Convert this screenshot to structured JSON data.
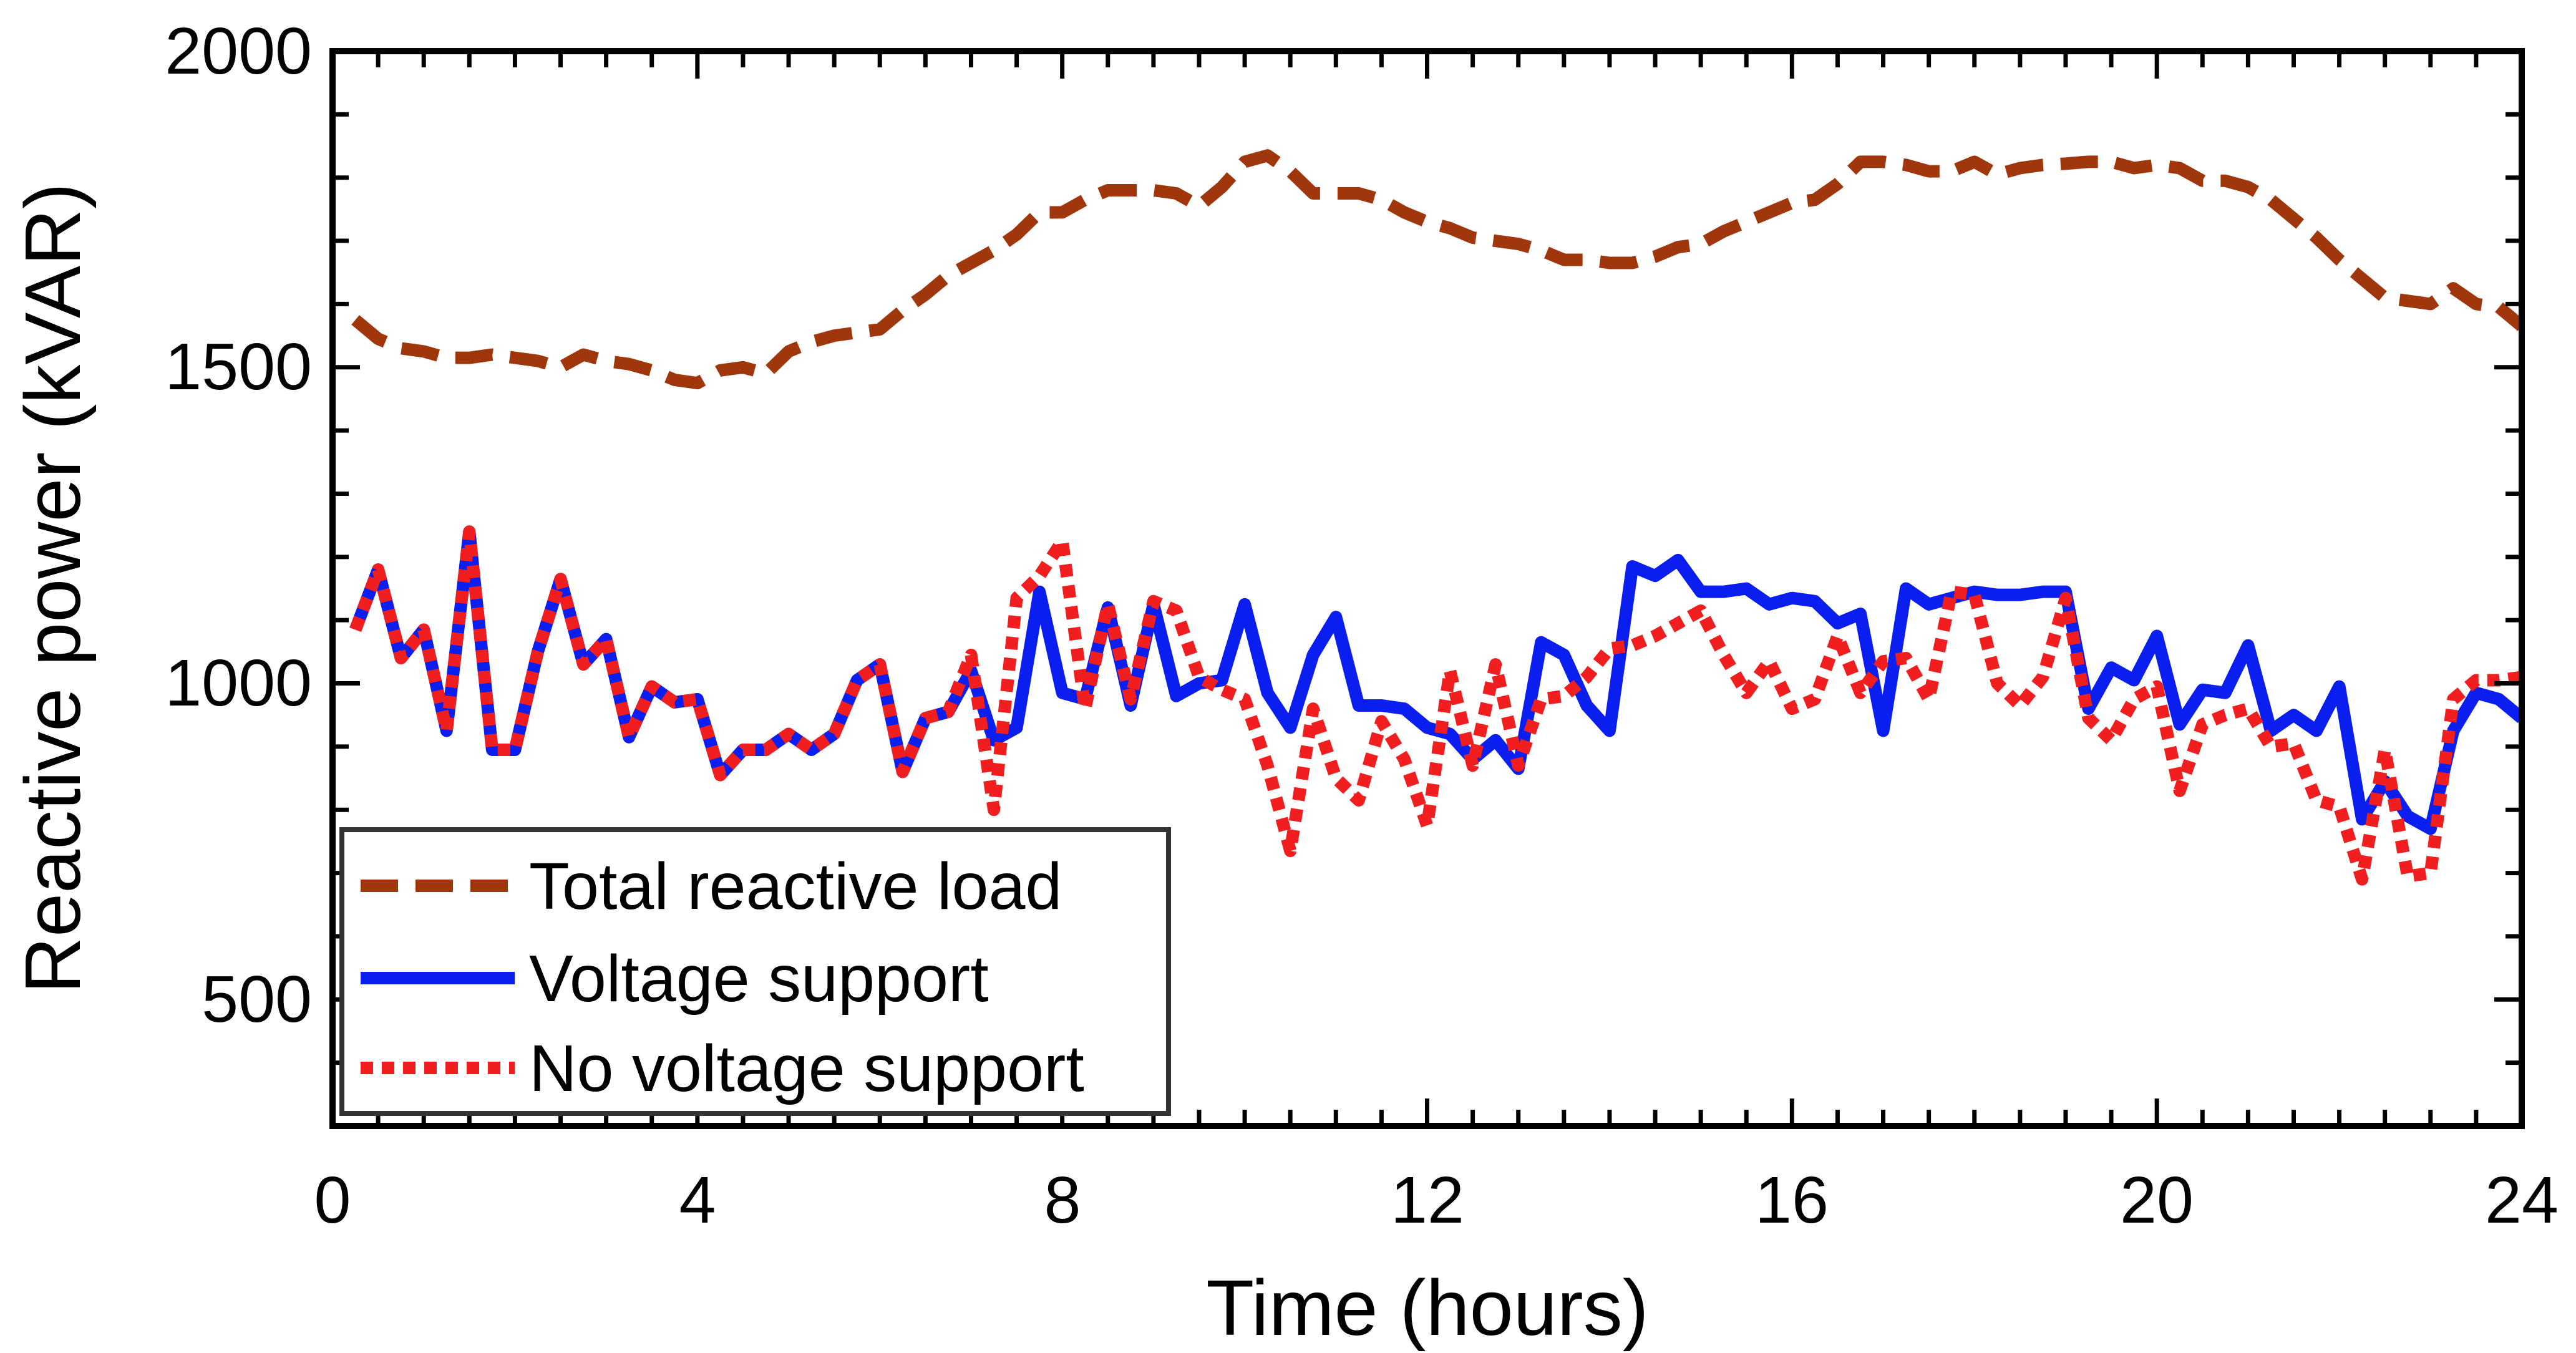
{
  "chart_data": {
    "type": "line",
    "title": "",
    "xlabel": "Time (hours)",
    "ylabel": "Reactive power (kVAR)",
    "xlim": [
      0,
      24
    ],
    "ylim": [
      300,
      2000
    ],
    "xticks": [
      0,
      4,
      8,
      12,
      16,
      20,
      24
    ],
    "xtick_labels": [
      "0",
      "4",
      "8",
      "12",
      "16",
      "20",
      "24"
    ],
    "yticks": [
      500,
      1000,
      1500,
      2000
    ],
    "ytick_labels": [
      "500",
      "1000",
      "1500",
      "2000"
    ],
    "grid": false,
    "legend_position": "bottom-left",
    "x": [
      0.25,
      0.5,
      0.75,
      1.0,
      1.25,
      1.5,
      1.75,
      2.0,
      2.25,
      2.5,
      2.75,
      3.0,
      3.25,
      3.5,
      3.75,
      4.0,
      4.25,
      4.5,
      4.75,
      5.0,
      5.25,
      5.5,
      5.75,
      6.0,
      6.25,
      6.5,
      6.75,
      7.0,
      7.25,
      7.5,
      7.75,
      8.0,
      8.25,
      8.5,
      8.75,
      9.0,
      9.25,
      9.5,
      9.75,
      10.0,
      10.25,
      10.5,
      10.75,
      11.0,
      11.25,
      11.5,
      11.75,
      12.0,
      12.25,
      12.5,
      12.75,
      13.0,
      13.25,
      13.5,
      13.75,
      14.0,
      14.25,
      14.5,
      14.75,
      15.0,
      15.25,
      15.5,
      15.75,
      16.0,
      16.25,
      16.5,
      16.75,
      17.0,
      17.25,
      17.5,
      17.75,
      18.0,
      18.25,
      18.5,
      18.75,
      19.0,
      19.25,
      19.5,
      19.75,
      20.0,
      20.25,
      20.5,
      20.75,
      21.0,
      21.25,
      21.5,
      21.75,
      22.0,
      22.25,
      22.5,
      22.75,
      23.0,
      23.25,
      23.5,
      23.75,
      24.0
    ],
    "series": [
      {
        "name": "Total reactive load",
        "color": "#A0360C",
        "style": "dashed",
        "values": [
          1575,
          1545,
          1530,
          1525,
          1515,
          1515,
          1520,
          1515,
          1510,
          1500,
          1520,
          1510,
          1505,
          1495,
          1480,
          1475,
          1495,
          1500,
          1490,
          1525,
          1540,
          1550,
          1555,
          1560,
          1590,
          1615,
          1645,
          1665,
          1685,
          1710,
          1745,
          1745,
          1765,
          1780,
          1780,
          1780,
          1775,
          1755,
          1785,
          1825,
          1835,
          1810,
          1775,
          1775,
          1775,
          1765,
          1745,
          1730,
          1720,
          1705,
          1700,
          1695,
          1685,
          1670,
          1670,
          1665,
          1665,
          1675,
          1690,
          1695,
          1715,
          1730,
          1745,
          1760,
          1765,
          1790,
          1825,
          1825,
          1820,
          1810,
          1810,
          1825,
          1805,
          1815,
          1820,
          1822,
          1825,
          1825,
          1815,
          1820,
          1815,
          1795,
          1795,
          1785,
          1765,
          1735,
          1705,
          1670,
          1640,
          1610,
          1605,
          1600,
          1625,
          1600,
          1595,
          1565
        ]
      },
      {
        "name": "Voltage support",
        "color": "#0A1EF0",
        "style": "solid",
        "values": [
          1085,
          1180,
          1040,
          1085,
          925,
          1240,
          895,
          895,
          1050,
          1165,
          1030,
          1070,
          915,
          995,
          970,
          975,
          855,
          895,
          895,
          920,
          895,
          920,
          1005,
          1030,
          860,
          945,
          955,
          1020,
          910,
          930,
          1145,
          985,
          975,
          1120,
          965,
          1125,
          980,
          1000,
          1005,
          1125,
          985,
          930,
          1045,
          1105,
          965,
          965,
          960,
          930,
          920,
          880,
          910,
          865,
          1065,
          1045,
          965,
          925,
          1185,
          1170,
          1195,
          1145,
          1145,
          1150,
          1125,
          1135,
          1130,
          1095,
          1110,
          925,
          1150,
          1125,
          1135,
          1145,
          1140,
          1140,
          1145,
          1145,
          960,
          1025,
          1005,
          1075,
          935,
          990,
          985,
          1060,
          925,
          950,
          925,
          995,
          785,
          845,
          790,
          770,
          925,
          985,
          975,
          945
        ]
      },
      {
        "name": "No voltage support",
        "color": "#F01E1E",
        "style": "dotted",
        "values": [
          1085,
          1180,
          1040,
          1085,
          925,
          1240,
          895,
          895,
          1050,
          1165,
          1030,
          1070,
          915,
          995,
          970,
          975,
          855,
          895,
          895,
          920,
          895,
          920,
          1005,
          1030,
          860,
          945,
          955,
          1045,
          800,
          1135,
          1170,
          1225,
          960,
          1125,
          975,
          1130,
          1115,
          1010,
          990,
          975,
          870,
          735,
          960,
          850,
          815,
          940,
          880,
          775,
          1020,
          870,
          1030,
          870,
          975,
          980,
          1010,
          1055,
          1060,
          1075,
          1095,
          1115,
          1045,
          985,
          1035,
          960,
          975,
          1075,
          985,
          1035,
          1040,
          975,
          1145,
          1140,
          1000,
          965,
          1010,
          1135,
          945,
          910,
          975,
          995,
          830,
          935,
          950,
          960,
          900,
          905,
          815,
          805,
          690,
          895,
          695,
          700,
          975,
          1005,
          1005,
          1010
        ]
      }
    ]
  }
}
